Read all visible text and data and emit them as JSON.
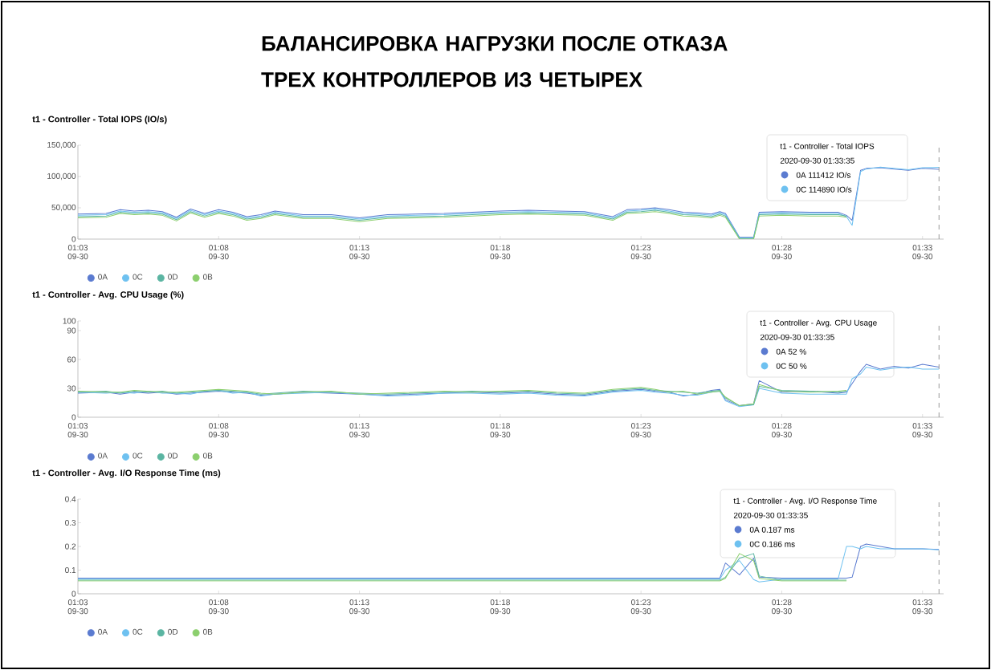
{
  "chart_data": [
    {
      "type": "other",
      "title": "БАЛАНСИРОВКА НАГРУЗКИ ПОСЛЕ ОТКАЗА ТРЕХ КОНТРОЛЛЕРОВ ИЗ ЧЕТЫРЕХ"
    },
    {
      "type": "line",
      "title": "t1 - Controller - Total IOPS (IO/s)",
      "x": [
        "2020-09-30T01:03:00",
        "2020-09-30T01:04:00",
        "2020-09-30T01:04:30",
        "2020-09-30T01:05:00",
        "2020-09-30T01:05:30",
        "2020-09-30T01:06:00",
        "2020-09-30T01:06:30",
        "2020-09-30T01:07:00",
        "2020-09-30T01:07:30",
        "2020-09-30T01:08:00",
        "2020-09-30T01:08:30",
        "2020-09-30T01:09:00",
        "2020-09-30T01:09:30",
        "2020-09-30T01:10:00",
        "2020-09-30T01:11:00",
        "2020-09-30T01:12:00",
        "2020-09-30T01:13:00",
        "2020-09-30T01:14:00",
        "2020-09-30T01:15:00",
        "2020-09-30T01:16:00",
        "2020-09-30T01:17:00",
        "2020-09-30T01:18:00",
        "2020-09-30T01:19:00",
        "2020-09-30T01:20:00",
        "2020-09-30T01:21:00",
        "2020-09-30T01:22:00",
        "2020-09-30T01:22:30",
        "2020-09-30T01:23:00",
        "2020-09-30T01:23:30",
        "2020-09-30T01:24:00",
        "2020-09-30T01:24:30",
        "2020-09-30T01:25:00",
        "2020-09-30T01:25:30",
        "2020-09-30T01:25:48",
        "2020-09-30T01:26:00",
        "2020-09-30T01:26:30",
        "2020-09-30T01:27:00",
        "2020-09-30T01:27:12",
        "2020-09-30T01:28:00",
        "2020-09-30T01:29:00",
        "2020-09-30T01:30:00",
        "2020-09-30T01:30:18",
        "2020-09-30T01:30:30",
        "2020-09-30T01:30:48",
        "2020-09-30T01:31:00",
        "2020-09-30T01:31:30",
        "2020-09-30T01:32:00",
        "2020-09-30T01:32:30",
        "2020-09-30T01:33:00",
        "2020-09-30T01:33:35"
      ],
      "xlim": [
        "2020-09-30T01:03",
        "2020-09-30T01:33:45"
      ],
      "xticks": [
        {
          "value": "2020-09-30T01:03",
          "label": "01:03 09-30"
        },
        {
          "value": "2020-09-30T01:08",
          "label": "01:08 09-30"
        },
        {
          "value": "2020-09-30T01:13",
          "label": "01:13 09-30"
        },
        {
          "value": "2020-09-30T01:18",
          "label": "01:18 09-30"
        },
        {
          "value": "2020-09-30T01:23",
          "label": "01:23 09-30"
        },
        {
          "value": "2020-09-30T01:28",
          "label": "01:28 09-30"
        },
        {
          "value": "2020-09-30T01:33",
          "label": "01:33 09-30"
        }
      ],
      "ylim": [
        0,
        150000
      ],
      "yticks": [
        0,
        {
          "value": 50000,
          "label": "50,000"
        },
        {
          "value": 100000,
          "label": "100,000"
        },
        {
          "value": 150000,
          "label": "150,000"
        }
      ],
      "legend": "bottom left",
      "ref_lines": [
        {
          "axis": "x",
          "value": "2020-09-30T01:33:35",
          "line_style": "dashed"
        }
      ],
      "annotations": [
        "t1 - Controller - Total IOPS",
        "2020-09-30 01:33:35",
        "0A   111412 IO/s",
        "0C   114890 IO/s"
      ],
      "series": [
        {
          "name": "0A",
          "color": "#5b7bd0",
          "values": [
            40000,
            41000,
            47000,
            45000,
            46000,
            44000,
            35000,
            48000,
            41000,
            47000,
            43000,
            36000,
            39000,
            45000,
            39000,
            39000,
            34000,
            39000,
            40000,
            41000,
            43000,
            45000,
            46000,
            45000,
            44000,
            36000,
            47000,
            48000,
            50000,
            47000,
            43000,
            42000,
            40000,
            44000,
            41000,
            3000,
            3000,
            43000,
            44000,
            43000,
            43000,
            38000,
            30000,
            110000,
            113000,
            114000,
            112000,
            110000,
            113000,
            111412
          ]
        },
        {
          "name": "0C",
          "color": "#6ec1f0",
          "values": [
            38000,
            39000,
            45000,
            43000,
            44000,
            42000,
            33000,
            46000,
            39000,
            45000,
            41000,
            34000,
            37000,
            43000,
            37000,
            37000,
            32000,
            37000,
            38000,
            39000,
            41000,
            43000,
            44000,
            43000,
            42000,
            34000,
            45000,
            46000,
            48000,
            45000,
            41000,
            40000,
            38000,
            42000,
            39000,
            2000,
            2000,
            41000,
            42000,
            41000,
            41000,
            36000,
            22000,
            108000,
            112000,
            115000,
            113000,
            111000,
            114000,
            114890
          ]
        },
        {
          "name": "0D",
          "color": "#5bb5a2",
          "values": [
            36000,
            37000,
            43000,
            41000,
            42000,
            40000,
            31000,
            44000,
            37000,
            43000,
            39000,
            32000,
            35000,
            41000,
            35000,
            35000,
            30000,
            35000,
            36000,
            37000,
            39000,
            41000,
            42000,
            41000,
            40000,
            32000,
            43000,
            44000,
            46000,
            43000,
            39000,
            38000,
            36000,
            40000,
            37000,
            1000,
            1000,
            39000,
            40000,
            39000,
            39000,
            37000,
            null,
            null,
            null,
            null,
            null,
            null,
            null,
            null
          ]
        },
        {
          "name": "0B",
          "color": "#8ccf6e",
          "values": [
            34000,
            35000,
            41000,
            39000,
            40000,
            38000,
            29000,
            42000,
            35000,
            41000,
            37000,
            30000,
            33000,
            39000,
            33000,
            33000,
            28000,
            33000,
            34000,
            35000,
            37000,
            39000,
            40000,
            39000,
            38000,
            30000,
            41000,
            42000,
            44000,
            41000,
            37000,
            36000,
            34000,
            38000,
            35000,
            0,
            0,
            37000,
            38000,
            37000,
            37000,
            35000,
            null,
            null,
            null,
            null,
            null,
            null,
            null,
            null
          ]
        }
      ]
    },
    {
      "type": "line",
      "title": "t1 - Controller - Avg. CPU Usage (%)",
      "x": [
        "2020-09-30T01:03:00",
        "2020-09-30T01:04:00",
        "2020-09-30T01:04:30",
        "2020-09-30T01:05:00",
        "2020-09-30T01:05:30",
        "2020-09-30T01:06:00",
        "2020-09-30T01:06:30",
        "2020-09-30T01:07:00",
        "2020-09-30T01:07:30",
        "2020-09-30T01:08:00",
        "2020-09-30T01:08:30",
        "2020-09-30T01:09:00",
        "2020-09-30T01:09:30",
        "2020-09-30T01:10:00",
        "2020-09-30T01:11:00",
        "2020-09-30T01:12:00",
        "2020-09-30T01:13:00",
        "2020-09-30T01:14:00",
        "2020-09-30T01:15:00",
        "2020-09-30T01:16:00",
        "2020-09-30T01:17:00",
        "2020-09-30T01:18:00",
        "2020-09-30T01:19:00",
        "2020-09-30T01:20:00",
        "2020-09-30T01:21:00",
        "2020-09-30T01:22:00",
        "2020-09-30T01:22:30",
        "2020-09-30T01:23:00",
        "2020-09-30T01:23:30",
        "2020-09-30T01:24:00",
        "2020-09-30T01:24:30",
        "2020-09-30T01:25:00",
        "2020-09-30T01:25:30",
        "2020-09-30T01:25:48",
        "2020-09-30T01:26:00",
        "2020-09-30T01:26:30",
        "2020-09-30T01:27:00",
        "2020-09-30T01:27:12",
        "2020-09-30T01:28:00",
        "2020-09-30T01:29:00",
        "2020-09-30T01:30:00",
        "2020-09-30T01:30:18",
        "2020-09-30T01:30:30",
        "2020-09-30T01:30:48",
        "2020-09-30T01:31:00",
        "2020-09-30T01:31:30",
        "2020-09-30T01:32:00",
        "2020-09-30T01:32:30",
        "2020-09-30T01:33:00",
        "2020-09-30T01:33:35"
      ],
      "xlim": [
        "2020-09-30T01:03",
        "2020-09-30T01:33:45"
      ],
      "xticks": [
        {
          "value": "2020-09-30T01:03",
          "label": "01:03 09-30"
        },
        {
          "value": "2020-09-30T01:08",
          "label": "01:08 09-30"
        },
        {
          "value": "2020-09-30T01:13",
          "label": "01:13 09-30"
        },
        {
          "value": "2020-09-30T01:18",
          "label": "01:18 09-30"
        },
        {
          "value": "2020-09-30T01:23",
          "label": "01:23 09-30"
        },
        {
          "value": "2020-09-30T01:28",
          "label": "01:28 09-30"
        },
        {
          "value": "2020-09-30T01:33",
          "label": "01:33 09-30"
        }
      ],
      "ylim": [
        0,
        100
      ],
      "yticks": [
        0,
        30,
        60,
        90,
        100
      ],
      "legend": "bottom left",
      "ref_lines": [
        {
          "axis": "x",
          "value": "2020-09-30T01:33:35",
          "line_style": "dashed"
        }
      ],
      "annotations": [
        "t1 - Controller - Avg. CPU Usage",
        "2020-09-30 01:33:35",
        "0A   52 %",
        "0C   50 %"
      ],
      "series": [
        {
          "name": "0A",
          "color": "#5b7bd0",
          "values": [
            25,
            26,
            24,
            26,
            25,
            26,
            24,
            25,
            26,
            27,
            26,
            25,
            23,
            24,
            26,
            25,
            24,
            23,
            24,
            25,
            26,
            25,
            26,
            24,
            23,
            27,
            28,
            29,
            27,
            26,
            22,
            24,
            28,
            29,
            18,
            12,
            14,
            38,
            26,
            27,
            25,
            26,
            35,
            48,
            55,
            50,
            53,
            51,
            55,
            52
          ]
        },
        {
          "name": "0C",
          "color": "#6ec1f0",
          "values": [
            26,
            25,
            26,
            25,
            27,
            25,
            25,
            24,
            27,
            28,
            25,
            26,
            22,
            24,
            25,
            26,
            24,
            22,
            23,
            25,
            25,
            24,
            25,
            23,
            22,
            26,
            27,
            28,
            26,
            25,
            23,
            23,
            26,
            27,
            17,
            11,
            13,
            30,
            25,
            24,
            24,
            24,
            40,
            45,
            52,
            49,
            51,
            52,
            50,
            50
          ]
        },
        {
          "name": "0D",
          "color": "#5bb5a2",
          "values": [
            26,
            27,
            25,
            27,
            26,
            27,
            25,
            26,
            27,
            28,
            27,
            26,
            24,
            25,
            27,
            26,
            25,
            24,
            25,
            26,
            27,
            26,
            27,
            25,
            24,
            28,
            29,
            30,
            28,
            27,
            26,
            25,
            27,
            28,
            20,
            12,
            13,
            32,
            28,
            27,
            26,
            27,
            null,
            null,
            null,
            null,
            null,
            null,
            null,
            null
          ]
        },
        {
          "name": "0B",
          "color": "#8ccf6e",
          "values": [
            27,
            26,
            26,
            28,
            27,
            26,
            26,
            27,
            28,
            29,
            28,
            27,
            25,
            24,
            26,
            27,
            24,
            25,
            26,
            27,
            26,
            27,
            28,
            26,
            25,
            29,
            30,
            31,
            29,
            26,
            27,
            24,
            26,
            27,
            21,
            12,
            14,
            34,
            27,
            26,
            27,
            28,
            null,
            null,
            null,
            null,
            null,
            null,
            null,
            null
          ]
        }
      ]
    },
    {
      "type": "line",
      "title": "t1 - Controller - Avg. I/O Response Time (ms)",
      "x": [
        "2020-09-30T01:03:00",
        "2020-09-30T01:04:00",
        "2020-09-30T01:04:30",
        "2020-09-30T01:05:00",
        "2020-09-30T01:05:30",
        "2020-09-30T01:06:00",
        "2020-09-30T01:06:30",
        "2020-09-30T01:07:00",
        "2020-09-30T01:07:30",
        "2020-09-30T01:08:00",
        "2020-09-30T01:08:30",
        "2020-09-30T01:09:00",
        "2020-09-30T01:09:30",
        "2020-09-30T01:10:00",
        "2020-09-30T01:11:00",
        "2020-09-30T01:12:00",
        "2020-09-30T01:13:00",
        "2020-09-30T01:14:00",
        "2020-09-30T01:15:00",
        "2020-09-30T01:16:00",
        "2020-09-30T01:17:00",
        "2020-09-30T01:18:00",
        "2020-09-30T01:19:00",
        "2020-09-30T01:20:00",
        "2020-09-30T01:21:00",
        "2020-09-30T01:22:00",
        "2020-09-30T01:22:30",
        "2020-09-30T01:23:00",
        "2020-09-30T01:23:30",
        "2020-09-30T01:24:00",
        "2020-09-30T01:24:30",
        "2020-09-30T01:25:00",
        "2020-09-30T01:25:30",
        "2020-09-30T01:25:48",
        "2020-09-30T01:26:00",
        "2020-09-30T01:26:30",
        "2020-09-30T01:27:00",
        "2020-09-30T01:27:12",
        "2020-09-30T01:28:00",
        "2020-09-30T01:29:00",
        "2020-09-30T01:30:00",
        "2020-09-30T01:30:18",
        "2020-09-30T01:30:30",
        "2020-09-30T01:30:48",
        "2020-09-30T01:31:00",
        "2020-09-30T01:31:30",
        "2020-09-30T01:32:00",
        "2020-09-30T01:32:30",
        "2020-09-30T01:33:00",
        "2020-09-30T01:33:35"
      ],
      "xlim": [
        "2020-09-30T01:03",
        "2020-09-30T01:33:45"
      ],
      "xticks": [
        {
          "value": "2020-09-30T01:03",
          "label": "01:03 09-30"
        },
        {
          "value": "2020-09-30T01:08",
          "label": "01:08 09-30"
        },
        {
          "value": "2020-09-30T01:13",
          "label": "01:13 09-30"
        },
        {
          "value": "2020-09-30T01:18",
          "label": "01:18 09-30"
        },
        {
          "value": "2020-09-30T01:23",
          "label": "01:23 09-30"
        },
        {
          "value": "2020-09-30T01:28",
          "label": "01:28 09-30"
        },
        {
          "value": "2020-09-30T01:33",
          "label": "01:33 09-30"
        }
      ],
      "ylim": [
        0,
        0.4
      ],
      "yticks": [
        0,
        0.1,
        0.2,
        0.3,
        0.4
      ],
      "legend": "bottom left",
      "ref_lines": [
        {
          "axis": "x",
          "value": "2020-09-30T01:33:35",
          "line_style": "dashed"
        }
      ],
      "annotations": [
        "t1 - Controller - Avg. I/O Response Time",
        "2020-09-30 01:33:35",
        "0A   0.187 ms",
        "0C   0.186 ms"
      ],
      "series": [
        {
          "name": "0A",
          "color": "#5b7bd0",
          "values": [
            0.066,
            0.066,
            0.066,
            0.066,
            0.066,
            0.066,
            0.066,
            0.066,
            0.066,
            0.066,
            0.066,
            0.066,
            0.066,
            0.066,
            0.066,
            0.066,
            0.066,
            0.066,
            0.066,
            0.066,
            0.066,
            0.066,
            0.066,
            0.066,
            0.066,
            0.066,
            0.066,
            0.066,
            0.066,
            0.066,
            0.066,
            0.066,
            0.066,
            0.066,
            0.13,
            0.08,
            0.15,
            0.07,
            0.066,
            0.066,
            0.066,
            0.066,
            0.07,
            0.2,
            0.21,
            0.2,
            0.19,
            0.19,
            0.19,
            0.187
          ]
        },
        {
          "name": "0C",
          "color": "#6ec1f0",
          "values": [
            0.062,
            0.062,
            0.062,
            0.062,
            0.062,
            0.062,
            0.062,
            0.062,
            0.062,
            0.062,
            0.062,
            0.062,
            0.062,
            0.062,
            0.062,
            0.062,
            0.062,
            0.062,
            0.062,
            0.062,
            0.062,
            0.062,
            0.062,
            0.062,
            0.062,
            0.062,
            0.062,
            0.062,
            0.062,
            0.062,
            0.062,
            0.062,
            0.062,
            0.062,
            0.1,
            0.14,
            0.06,
            0.05,
            0.062,
            0.062,
            0.062,
            0.2,
            0.2,
            0.19,
            0.2,
            0.19,
            0.19,
            0.19,
            0.19,
            0.186
          ]
        },
        {
          "name": "0D",
          "color": "#5bb5a2",
          "values": [
            0.058,
            0.058,
            0.058,
            0.058,
            0.058,
            0.058,
            0.058,
            0.058,
            0.058,
            0.058,
            0.058,
            0.058,
            0.058,
            0.058,
            0.058,
            0.058,
            0.058,
            0.058,
            0.058,
            0.058,
            0.058,
            0.058,
            0.058,
            0.058,
            0.058,
            0.058,
            0.058,
            0.058,
            0.058,
            0.058,
            0.058,
            0.058,
            0.058,
            0.058,
            0.07,
            0.15,
            0.17,
            0.075,
            0.058,
            0.058,
            0.058,
            0.058,
            null,
            null,
            null,
            null,
            null,
            null,
            null,
            null
          ]
        },
        {
          "name": "0B",
          "color": "#8ccf6e",
          "values": [
            0.054,
            0.054,
            0.054,
            0.054,
            0.054,
            0.054,
            0.054,
            0.054,
            0.054,
            0.054,
            0.054,
            0.054,
            0.054,
            0.054,
            0.054,
            0.054,
            0.054,
            0.054,
            0.054,
            0.054,
            0.054,
            0.054,
            0.054,
            0.054,
            0.054,
            0.054,
            0.054,
            0.054,
            0.054,
            0.054,
            0.054,
            0.054,
            0.054,
            0.054,
            0.065,
            0.17,
            0.14,
            0.065,
            0.054,
            0.054,
            0.054,
            0.054,
            null,
            null,
            null,
            null,
            null,
            null,
            null,
            null
          ]
        }
      ]
    }
  ]
}
